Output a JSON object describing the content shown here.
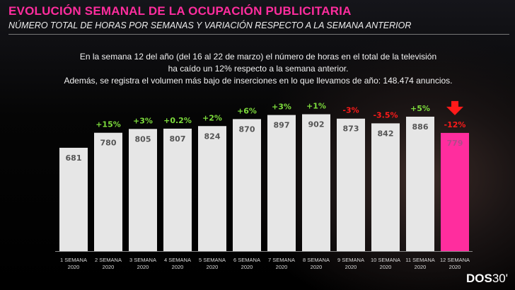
{
  "title": "EVOLUCIÓN SEMANAL DE LA OCUPACIÓN PUBLICITARIA",
  "subtitle": "NÚMERO TOTAL DE HORAS POR SEMANAS Y VARIACIÓN RESPECTO A LA SEMANA ANTERIOR",
  "intro": [
    "En la semana 12 del año (del 16 al 22 de marzo) el número de horas en el total de la televisión",
    "ha caído un 12% respecto a la semana anterior.",
    "Además, se registra el volumen más bajo de inserciones en lo que llevamos de año: 148.474 anuncios."
  ],
  "logo": {
    "bold": "DOS",
    "light": "30'"
  },
  "colors": {
    "bar": "#e6e6e6",
    "highlight": "#ff2d9e",
    "up": "#7ddc3c",
    "down": "#ff1a1a"
  },
  "chart_data": {
    "type": "bar",
    "title": "EVOLUCIÓN SEMANAL DE LA OCUPACIÓN PUBLICITARIA",
    "categories": [
      [
        "1 SEMANA",
        "2020"
      ],
      [
        "2 SEMANA",
        "2020"
      ],
      [
        "3 SEMANA",
        "2020"
      ],
      [
        "4 SEMANA",
        "2020"
      ],
      [
        "5 SEMANA",
        "2020"
      ],
      [
        "6 SEMANA",
        "2020"
      ],
      [
        "7 SEMANA",
        "2020"
      ],
      [
        "8 SEMANA",
        "2020"
      ],
      [
        "9 SEMANA",
        "2020"
      ],
      [
        "10 SEMANA",
        "2020"
      ],
      [
        "11 SEMANA",
        "2020"
      ],
      [
        "12 SEMANA",
        "2020"
      ]
    ],
    "values": [
      681,
      780,
      805,
      807,
      824,
      870,
      897,
      902,
      873,
      842,
      886,
      779
    ],
    "variation": [
      "",
      "+15%",
      "+3%",
      "+0.2%",
      "+2%",
      "+6%",
      "+3%",
      "+1%",
      "-3%",
      "-3.5%",
      "+5%",
      "-12%"
    ],
    "highlight_index": 11,
    "ylim": [
      0,
      1000
    ],
    "grid": false
  }
}
